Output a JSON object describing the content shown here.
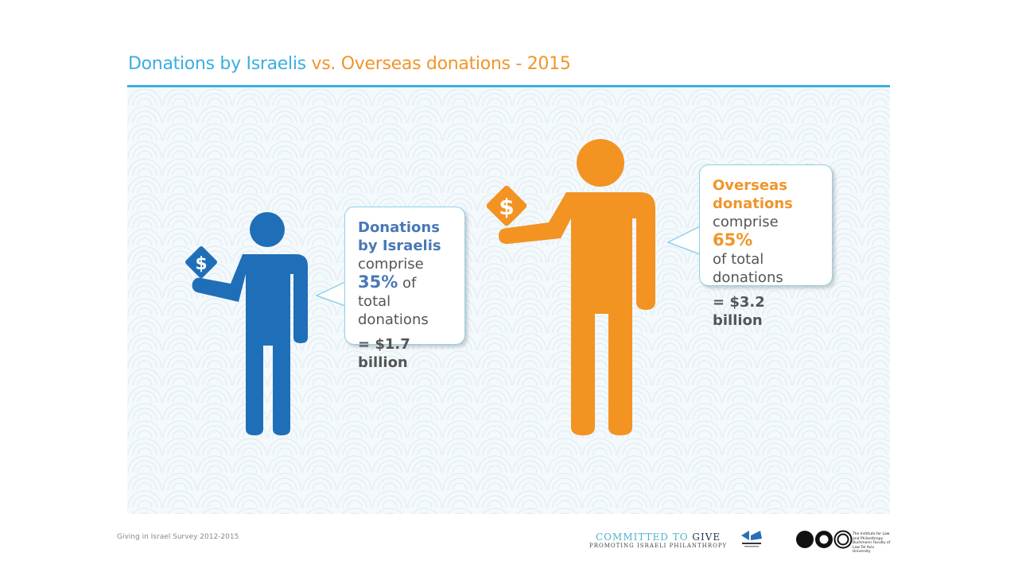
{
  "title": {
    "part1": "Donations by Israelis",
    "part2": "vs. Overseas donations",
    "part3": "- 2015"
  },
  "colors": {
    "israelis": "#1f6fb8",
    "overseas": "#f39322",
    "title_blue": "#3aaee0"
  },
  "israelis": {
    "icon": "person-with-dollar-sign-icon",
    "heading": "Donations by Israelis",
    "comprise": "comprise",
    "percent": "35%",
    "percent_value": 35,
    "of_total": "of total donations",
    "amount": "= $1.7 billion"
  },
  "overseas": {
    "icon": "person-with-dollar-sign-icon",
    "heading": "Overseas donations",
    "comprise": "comprise",
    "percent": "65%",
    "percent_value": 65,
    "of_total": "of total donations",
    "amount": "= $3.2 billion"
  },
  "footer": {
    "source": "Giving in Israel Survey 2012-2015",
    "logo1_line1a": "COMMITTED TO",
    "logo1_line1b": "GIVE",
    "logo1_line2": "PROMOTING ISRAELI PHILANTHROPY",
    "logo3_text": "The Institute for Law and Philanthropy Buchmann Faculty of Law Tel Aviv University"
  }
}
